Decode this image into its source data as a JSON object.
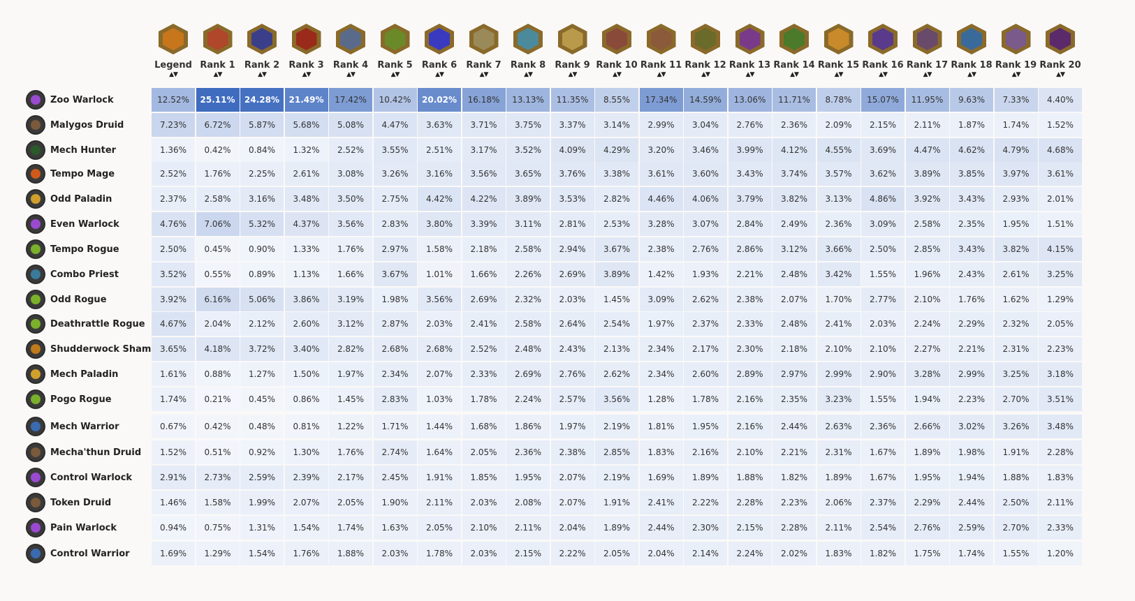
{
  "columns": [
    {
      "label": "Legend",
      "icon": "legend-rank-icon",
      "color": "#c8761c"
    },
    {
      "label": "Rank 1",
      "icon": "rank-1-icon",
      "color": "#b0462a"
    },
    {
      "label": "Rank 2",
      "icon": "rank-2-icon",
      "color": "#3b3f8a"
    },
    {
      "label": "Rank 3",
      "icon": "rank-3-icon",
      "color": "#9a2b1a"
    },
    {
      "label": "Rank 4",
      "icon": "rank-4-icon",
      "color": "#5a6a8a"
    },
    {
      "label": "Rank 5",
      "icon": "rank-5-icon",
      "color": "#6a8a2a"
    },
    {
      "label": "Rank 6",
      "icon": "rank-6-icon",
      "color": "#3a3ac0"
    },
    {
      "label": "Rank 7",
      "icon": "rank-7-icon",
      "color": "#9a8a5a"
    },
    {
      "label": "Rank 8",
      "icon": "rank-8-icon",
      "color": "#4a8a9a"
    },
    {
      "label": "Rank 9",
      "icon": "rank-9-icon",
      "color": "#b89a4a"
    },
    {
      "label": "Rank 10",
      "icon": "rank-10-icon",
      "color": "#8a4a3a"
    },
    {
      "label": "Rank 11",
      "icon": "rank-11-icon",
      "color": "#8a5a3a"
    },
    {
      "label": "Rank 12",
      "icon": "rank-12-icon",
      "color": "#6a6a2a"
    },
    {
      "label": "Rank 13",
      "icon": "rank-13-icon",
      "color": "#7a3a8a"
    },
    {
      "label": "Rank 14",
      "icon": "rank-14-icon",
      "color": "#4a7a2a"
    },
    {
      "label": "Rank 15",
      "icon": "rank-15-icon",
      "color": "#c88a2a"
    },
    {
      "label": "Rank 16",
      "icon": "rank-16-icon",
      "color": "#5a3a8a"
    },
    {
      "label": "Rank 17",
      "icon": "rank-17-icon",
      "color": "#6a4a6a"
    },
    {
      "label": "Rank 18",
      "icon": "rank-18-icon",
      "color": "#3a6a9a"
    },
    {
      "label": "Rank 19",
      "icon": "rank-19-icon",
      "color": "#7a5a8a"
    },
    {
      "label": "Rank 20",
      "icon": "rank-20-icon",
      "color": "#5a2a6a"
    }
  ],
  "rows": [
    {
      "name": "Zoo Warlock",
      "icon": "warlock-icon",
      "color": "#9a4ad0",
      "values": [
        "12.52%",
        "25.11%",
        "24.28%",
        "21.49%",
        "17.42%",
        "10.42%",
        "20.02%",
        "16.18%",
        "13.13%",
        "11.35%",
        "8.55%",
        "17.34%",
        "14.59%",
        "13.06%",
        "11.71%",
        "8.78%",
        "15.07%",
        "11.95%",
        "9.63%",
        "7.33%",
        "4.40%"
      ]
    },
    {
      "name": "Malygos Druid",
      "icon": "druid-icon",
      "color": "#7a5a3a",
      "values": [
        "7.23%",
        "6.72%",
        "5.87%",
        "5.68%",
        "5.08%",
        "4.47%",
        "3.63%",
        "3.71%",
        "3.75%",
        "3.37%",
        "3.14%",
        "2.99%",
        "3.04%",
        "2.76%",
        "2.36%",
        "2.09%",
        "2.15%",
        "2.11%",
        "1.87%",
        "1.74%",
        "1.52%"
      ]
    },
    {
      "name": "Mech Hunter",
      "icon": "hunter-icon",
      "color": "#2a5a2a",
      "values": [
        "1.36%",
        "0.42%",
        "0.84%",
        "1.32%",
        "2.52%",
        "3.55%",
        "2.51%",
        "3.17%",
        "3.52%",
        "4.09%",
        "4.29%",
        "3.20%",
        "3.46%",
        "3.99%",
        "4.12%",
        "4.55%",
        "3.69%",
        "4.47%",
        "4.62%",
        "4.79%",
        "4.68%"
      ]
    },
    {
      "name": "Tempo Mage",
      "icon": "mage-icon",
      "color": "#d05a1a",
      "values": [
        "2.52%",
        "1.76%",
        "2.25%",
        "2.61%",
        "3.08%",
        "3.26%",
        "3.16%",
        "3.56%",
        "3.65%",
        "3.76%",
        "3.38%",
        "3.61%",
        "3.60%",
        "3.43%",
        "3.74%",
        "3.57%",
        "3.62%",
        "3.89%",
        "3.85%",
        "3.97%",
        "3.61%"
      ]
    },
    {
      "name": "Odd Paladin",
      "icon": "paladin-icon",
      "color": "#d0a02a",
      "values": [
        "2.37%",
        "2.58%",
        "3.16%",
        "3.48%",
        "3.50%",
        "2.75%",
        "4.42%",
        "4.22%",
        "3.89%",
        "3.53%",
        "2.82%",
        "4.46%",
        "4.06%",
        "3.79%",
        "3.82%",
        "3.13%",
        "4.86%",
        "3.92%",
        "3.43%",
        "2.93%",
        "2.01%"
      ]
    },
    {
      "name": "Even Warlock",
      "icon": "warlock-icon",
      "color": "#9a4ad0",
      "values": [
        "4.76%",
        "7.06%",
        "5.32%",
        "4.37%",
        "3.56%",
        "2.83%",
        "3.80%",
        "3.39%",
        "3.11%",
        "2.81%",
        "2.53%",
        "3.28%",
        "3.07%",
        "2.84%",
        "2.49%",
        "2.36%",
        "3.09%",
        "2.58%",
        "2.35%",
        "1.95%",
        "1.51%"
      ]
    },
    {
      "name": "Tempo Rogue",
      "icon": "rogue-icon",
      "color": "#7ab02a",
      "values": [
        "2.50%",
        "0.45%",
        "0.90%",
        "1.33%",
        "1.76%",
        "2.97%",
        "1.58%",
        "2.18%",
        "2.58%",
        "2.94%",
        "3.67%",
        "2.38%",
        "2.76%",
        "2.86%",
        "3.12%",
        "3.66%",
        "2.50%",
        "2.85%",
        "3.43%",
        "3.82%",
        "4.15%"
      ]
    },
    {
      "name": "Combo Priest",
      "icon": "priest-icon",
      "color": "#3a7a9a",
      "values": [
        "3.52%",
        "0.55%",
        "0.89%",
        "1.13%",
        "1.66%",
        "3.67%",
        "1.01%",
        "1.66%",
        "2.26%",
        "2.69%",
        "3.89%",
        "1.42%",
        "1.93%",
        "2.21%",
        "2.48%",
        "3.42%",
        "1.55%",
        "1.96%",
        "2.43%",
        "2.61%",
        "3.25%"
      ]
    },
    {
      "name": "Odd Rogue",
      "icon": "rogue-icon",
      "color": "#7ab02a",
      "values": [
        "3.92%",
        "6.16%",
        "5.06%",
        "3.86%",
        "3.19%",
        "1.98%",
        "3.56%",
        "2.69%",
        "2.32%",
        "2.03%",
        "1.45%",
        "3.09%",
        "2.62%",
        "2.38%",
        "2.07%",
        "1.70%",
        "2.77%",
        "2.10%",
        "1.76%",
        "1.62%",
        "1.29%"
      ]
    },
    {
      "name": "Deathrattle Rogue",
      "icon": "rogue-icon",
      "color": "#7ab02a",
      "values": [
        "4.67%",
        "2.04%",
        "2.12%",
        "2.60%",
        "3.12%",
        "2.87%",
        "2.03%",
        "2.41%",
        "2.58%",
        "2.64%",
        "2.54%",
        "1.97%",
        "2.37%",
        "2.33%",
        "2.48%",
        "2.41%",
        "2.03%",
        "2.24%",
        "2.29%",
        "2.32%",
        "2.05%"
      ]
    },
    {
      "name": "Shudderwock Shaman",
      "icon": "shaman-icon",
      "color": "#c07a1a",
      "values": [
        "3.65%",
        "4.18%",
        "3.72%",
        "3.40%",
        "2.82%",
        "2.68%",
        "2.68%",
        "2.52%",
        "2.48%",
        "2.43%",
        "2.13%",
        "2.34%",
        "2.17%",
        "2.30%",
        "2.18%",
        "2.10%",
        "2.10%",
        "2.27%",
        "2.21%",
        "2.31%",
        "2.23%"
      ]
    },
    {
      "name": "Mech Paladin",
      "icon": "paladin-icon",
      "color": "#d0a02a",
      "values": [
        "1.61%",
        "0.88%",
        "1.27%",
        "1.50%",
        "1.97%",
        "2.34%",
        "2.07%",
        "2.33%",
        "2.69%",
        "2.76%",
        "2.62%",
        "2.34%",
        "2.60%",
        "2.89%",
        "2.97%",
        "2.99%",
        "2.90%",
        "3.28%",
        "2.99%",
        "3.25%",
        "3.18%"
      ]
    },
    {
      "name": "Pogo Rogue",
      "icon": "rogue-icon",
      "color": "#7ab02a",
      "values": [
        "1.74%",
        "0.21%",
        "0.45%",
        "0.86%",
        "1.45%",
        "2.83%",
        "1.03%",
        "1.78%",
        "2.24%",
        "2.57%",
        "3.56%",
        "1.28%",
        "1.78%",
        "2.16%",
        "2.35%",
        "3.23%",
        "1.55%",
        "1.94%",
        "2.23%",
        "2.70%",
        "3.51%"
      ]
    },
    {
      "name": "Mech Warrior",
      "icon": "warrior-icon",
      "color": "#3a6ab0",
      "values": [
        "0.67%",
        "0.42%",
        "0.48%",
        "0.81%",
        "1.22%",
        "1.71%",
        "1.44%",
        "1.68%",
        "1.86%",
        "1.97%",
        "2.19%",
        "1.81%",
        "1.95%",
        "2.16%",
        "2.44%",
        "2.63%",
        "2.36%",
        "2.66%",
        "3.02%",
        "3.26%",
        "3.48%"
      ]
    },
    {
      "name": "Mecha'thun Druid",
      "icon": "druid-icon",
      "color": "#7a5a3a",
      "values": [
        "1.52%",
        "0.51%",
        "0.92%",
        "1.30%",
        "1.76%",
        "2.74%",
        "1.64%",
        "2.05%",
        "2.36%",
        "2.38%",
        "2.85%",
        "1.83%",
        "2.16%",
        "2.10%",
        "2.21%",
        "2.31%",
        "1.67%",
        "1.89%",
        "1.98%",
        "1.91%",
        "2.28%"
      ]
    },
    {
      "name": "Control Warlock",
      "icon": "warlock-icon",
      "color": "#9a4ad0",
      "values": [
        "2.91%",
        "2.73%",
        "2.59%",
        "2.39%",
        "2.17%",
        "2.45%",
        "1.91%",
        "1.85%",
        "1.95%",
        "2.07%",
        "2.19%",
        "1.69%",
        "1.89%",
        "1.88%",
        "1.82%",
        "1.89%",
        "1.67%",
        "1.95%",
        "1.94%",
        "1.88%",
        "1.83%"
      ]
    },
    {
      "name": "Token Druid",
      "icon": "druid-icon",
      "color": "#7a5a3a",
      "values": [
        "1.46%",
        "1.58%",
        "1.99%",
        "2.07%",
        "2.05%",
        "1.90%",
        "2.11%",
        "2.03%",
        "2.08%",
        "2.07%",
        "1.91%",
        "2.41%",
        "2.22%",
        "2.28%",
        "2.23%",
        "2.06%",
        "2.37%",
        "2.29%",
        "2.44%",
        "2.50%",
        "2.11%"
      ]
    },
    {
      "name": "Pain Warlock",
      "icon": "warlock-icon",
      "color": "#9a4ad0",
      "values": [
        "0.94%",
        "0.75%",
        "1.31%",
        "1.54%",
        "1.74%",
        "1.63%",
        "2.05%",
        "2.10%",
        "2.11%",
        "2.04%",
        "1.89%",
        "2.44%",
        "2.30%",
        "2.15%",
        "2.28%",
        "2.11%",
        "2.54%",
        "2.76%",
        "2.59%",
        "2.70%",
        "2.33%"
      ]
    },
    {
      "name": "Control Warrior",
      "icon": "warrior-icon",
      "color": "#3a6ab0",
      "values": [
        "1.69%",
        "1.29%",
        "1.54%",
        "1.76%",
        "1.88%",
        "2.03%",
        "1.78%",
        "2.03%",
        "2.15%",
        "2.22%",
        "2.05%",
        "2.04%",
        "2.14%",
        "2.24%",
        "2.02%",
        "1.83%",
        "1.82%",
        "1.75%",
        "1.74%",
        "1.55%",
        "1.20%"
      ]
    }
  ],
  "sort_glyph": "▲▼",
  "colors": {
    "cell_max": "#3f6cbf",
    "cell_min": "#f4f7fc",
    "text_dark": "#333333",
    "text_light": "#ffffff"
  }
}
